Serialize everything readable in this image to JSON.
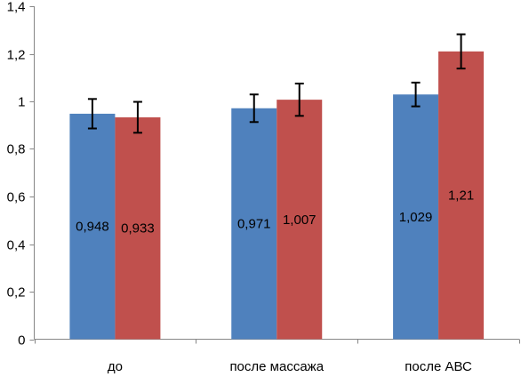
{
  "chart_data": {
    "type": "bar",
    "categories": [
      "до",
      "после массажа",
      "после АВС"
    ],
    "series": [
      {
        "values": [
          0.948,
          0.971,
          1.029
        ],
        "errors": [
          0.062,
          0.058,
          0.05
        ],
        "labels": [
          "0,948",
          "0,971",
          "1,029"
        ],
        "color": "#4F81BD"
      },
      {
        "values": [
          0.933,
          1.007,
          1.21
        ],
        "errors": [
          0.065,
          0.068,
          0.072
        ],
        "labels": [
          "0,933",
          "1,007",
          "1,21"
        ],
        "color": "#C0504D"
      }
    ],
    "ylim": [
      0,
      1.4
    ],
    "yticks": [
      0,
      0.2,
      0.4,
      0.6,
      0.8,
      1,
      1.2,
      1.4
    ],
    "ytick_labels": [
      "0",
      "0,2",
      "0,4",
      "0,6",
      "0,8",
      "1",
      "1,2",
      "1,4"
    ],
    "grid": false,
    "legend": "none",
    "error_bars": true
  }
}
